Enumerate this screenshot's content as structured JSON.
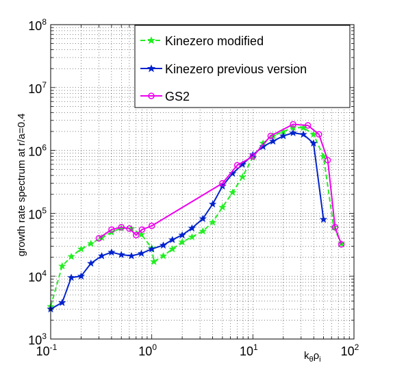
{
  "chart_data": {
    "type": "line",
    "xscale": "log",
    "yscale": "log",
    "xlim": [
      0.1,
      100
    ],
    "ylim": [
      1000,
      100000000
    ],
    "grid": true,
    "legend_position": "top-right",
    "ylabel": "growth rate spectrum at r/a=0.4",
    "xlabel": {
      "main": "k",
      "sub1": "θ",
      "mid": "ρ",
      "sub2": "i"
    },
    "x_ticks": [
      {
        "value": 0.1,
        "base": "10",
        "exp": "-1"
      },
      {
        "value": 1,
        "base": "10",
        "exp": "0"
      },
      {
        "value": 10,
        "base": "10",
        "exp": "1"
      },
      {
        "value": 100,
        "base": "10",
        "exp": "2"
      }
    ],
    "y_ticks": [
      {
        "value": 1000,
        "base": "10",
        "exp": "3"
      },
      {
        "value": 10000,
        "base": "10",
        "exp": "4"
      },
      {
        "value": 100000,
        "base": "10",
        "exp": "5"
      },
      {
        "value": 1000000,
        "base": "10",
        "exp": "6"
      },
      {
        "value": 10000000,
        "base": "10",
        "exp": "7"
      },
      {
        "value": 100000000,
        "base": "10",
        "exp": "8"
      }
    ],
    "series": [
      {
        "name": "Kinezero modified",
        "color": "#22ee22",
        "marker": "star",
        "dashed": true,
        "points": [
          [
            0.1,
            3300
          ],
          [
            0.13,
            14500
          ],
          [
            0.16,
            20500
          ],
          [
            0.2,
            27000
          ],
          [
            0.25,
            33000
          ],
          [
            0.32,
            41000
          ],
          [
            0.4,
            50000
          ],
          [
            0.5,
            58000
          ],
          [
            0.63,
            57000
          ],
          [
            0.79,
            46000
          ],
          [
            1.0,
            28000
          ],
          [
            1.05,
            17000
          ],
          [
            1.3,
            21000
          ],
          [
            1.6,
            27000
          ],
          [
            2.0,
            35000
          ],
          [
            2.5,
            42000
          ],
          [
            3.2,
            52000
          ],
          [
            4.0,
            72000
          ],
          [
            5.0,
            125000
          ],
          [
            6.3,
            215000
          ],
          [
            7.9,
            380000
          ],
          [
            10.0,
            780000
          ],
          [
            12.6,
            1300000
          ],
          [
            15.8,
            1700000
          ],
          [
            20.0,
            2000000
          ],
          [
            25.0,
            2300000
          ],
          [
            31.6,
            2300000
          ],
          [
            39.8,
            1800000
          ],
          [
            50.0,
            800000
          ],
          [
            63.0,
            60000
          ],
          [
            75.0,
            33000
          ]
        ]
      },
      {
        "name": "Kinezero previous version",
        "color": "#0022cc",
        "marker": "star",
        "dashed": false,
        "points": [
          [
            0.1,
            3000
          ],
          [
            0.13,
            3800
          ],
          [
            0.16,
            9500
          ],
          [
            0.2,
            10000
          ],
          [
            0.25,
            16000
          ],
          [
            0.32,
            21000
          ],
          [
            0.4,
            24000
          ],
          [
            0.5,
            22000
          ],
          [
            0.63,
            21000
          ],
          [
            0.79,
            23000
          ],
          [
            1.0,
            27000
          ],
          [
            1.3,
            31000
          ],
          [
            1.6,
            38000
          ],
          [
            2.0,
            45000
          ],
          [
            2.5,
            58000
          ],
          [
            3.2,
            82000
          ],
          [
            4.0,
            140000
          ],
          [
            5.0,
            270000
          ],
          [
            6.3,
            430000
          ],
          [
            7.9,
            600000
          ],
          [
            10.0,
            850000
          ],
          [
            12.6,
            1150000
          ],
          [
            15.8,
            1400000
          ],
          [
            20.0,
            1700000
          ],
          [
            25.0,
            1900000
          ],
          [
            31.6,
            1800000
          ],
          [
            39.8,
            1300000
          ],
          [
            50.0,
            80000
          ]
        ]
      },
      {
        "name": "GS2",
        "color": "#ee00ee",
        "marker": "circle",
        "dashed": false,
        "points": [
          [
            0.3,
            40000
          ],
          [
            0.4,
            55000
          ],
          [
            0.5,
            60000
          ],
          [
            0.6,
            57000
          ],
          [
            0.7,
            45000
          ],
          [
            0.8,
            55000
          ],
          [
            1.0,
            63000
          ],
          [
            5.0,
            300000
          ],
          [
            7.0,
            580000
          ],
          [
            10.0,
            800000
          ],
          [
            15.0,
            1700000
          ],
          [
            25.0,
            2600000
          ],
          [
            35.0,
            2500000
          ],
          [
            45.0,
            1800000
          ],
          [
            55.0,
            700000
          ],
          [
            65.0,
            60000
          ],
          [
            75.0,
            32000
          ]
        ]
      }
    ]
  }
}
